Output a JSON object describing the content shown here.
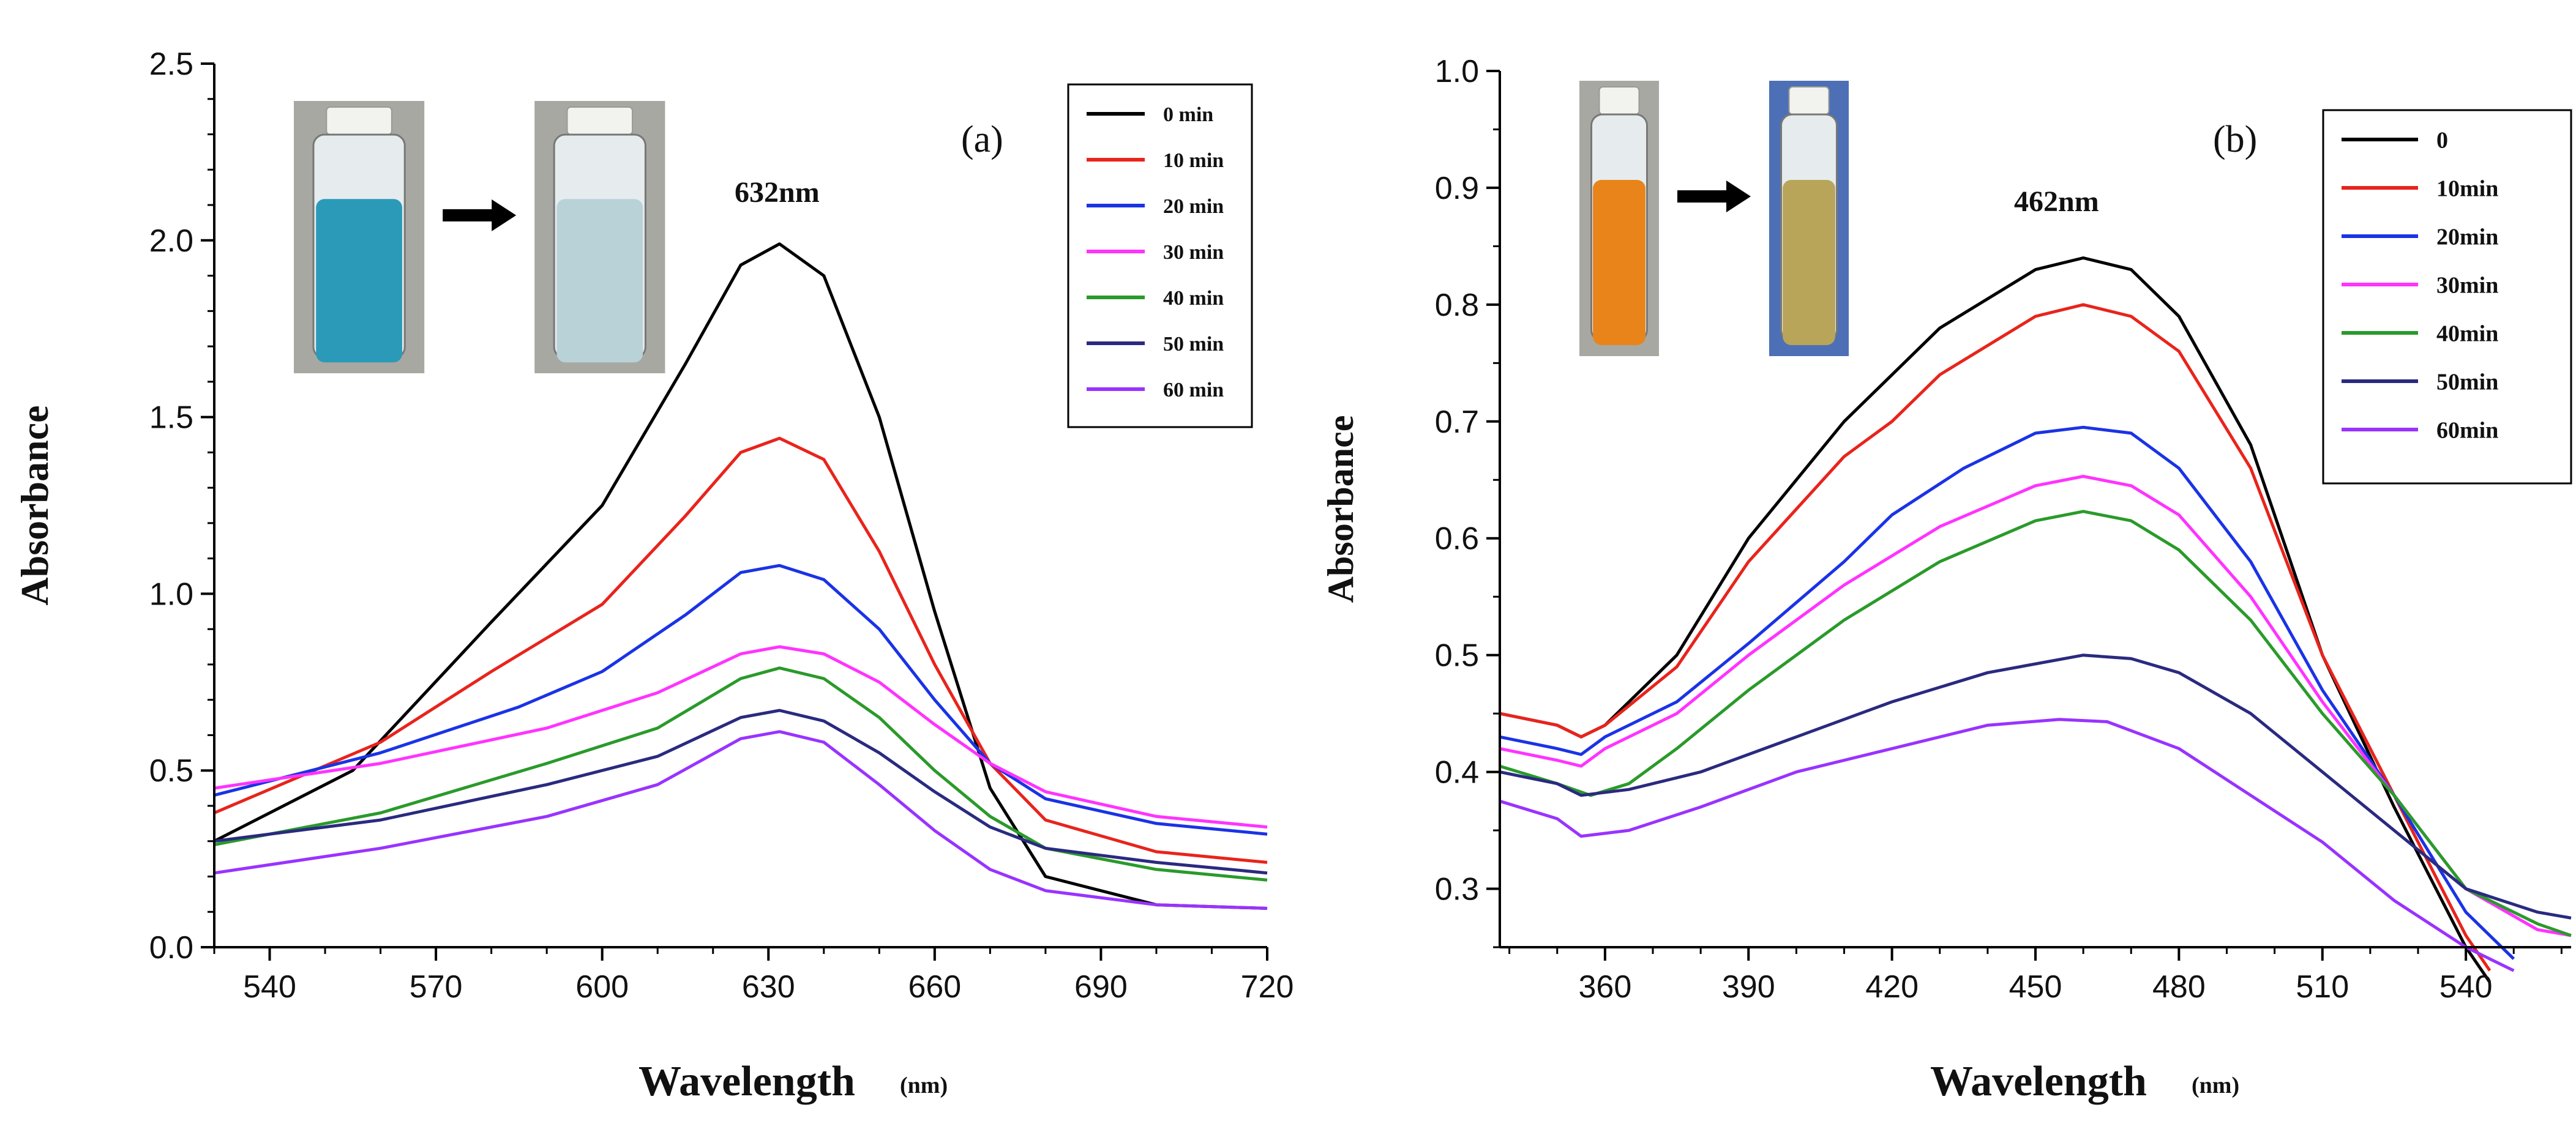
{
  "chart_data": [
    {
      "type": "line",
      "panel_label": "(a)",
      "peak_annotation": "632nm",
      "xlabel": "Wavelength",
      "xlabel_unit": "(nm)",
      "ylabel": "Absorbance",
      "xlim": [
        530,
        720
      ],
      "ylim": [
        0.0,
        2.5
      ],
      "xticks": [
        540,
        570,
        600,
        630,
        660,
        690,
        720
      ],
      "yticks": [
        "0.0",
        "0.5",
        "1.0",
        "1.5",
        "2.0",
        "2.5"
      ],
      "legend_position": "top-right",
      "inset": {
        "description": "vials",
        "before_color": "#2a9ab8",
        "after_color": "#b9d2d8"
      },
      "series": [
        {
          "name": "0 min",
          "color": "#000000",
          "points": [
            [
              530,
              0.3
            ],
            [
              555,
              0.5
            ],
            [
              580,
              0.92
            ],
            [
              600,
              1.25
            ],
            [
              615,
              1.65
            ],
            [
              625,
              1.93
            ],
            [
              632,
              1.99
            ],
            [
              640,
              1.9
            ],
            [
              650,
              1.5
            ],
            [
              660,
              0.95
            ],
            [
              670,
              0.45
            ],
            [
              680,
              0.2
            ],
            [
              700,
              0.12
            ],
            [
              720,
              0.11
            ]
          ]
        },
        {
          "name": "10 min",
          "color": "#e8241c",
          "points": [
            [
              530,
              0.38
            ],
            [
              560,
              0.58
            ],
            [
              580,
              0.78
            ],
            [
              600,
              0.97
            ],
            [
              615,
              1.22
            ],
            [
              625,
              1.4
            ],
            [
              632,
              1.44
            ],
            [
              640,
              1.38
            ],
            [
              650,
              1.12
            ],
            [
              660,
              0.8
            ],
            [
              670,
              0.52
            ],
            [
              680,
              0.36
            ],
            [
              700,
              0.27
            ],
            [
              720,
              0.24
            ]
          ]
        },
        {
          "name": "20 min",
          "color": "#1a33e6",
          "points": [
            [
              530,
              0.43
            ],
            [
              560,
              0.55
            ],
            [
              585,
              0.68
            ],
            [
              600,
              0.78
            ],
            [
              615,
              0.94
            ],
            [
              625,
              1.06
            ],
            [
              632,
              1.08
            ],
            [
              640,
              1.04
            ],
            [
              650,
              0.9
            ],
            [
              660,
              0.7
            ],
            [
              670,
              0.52
            ],
            [
              680,
              0.42
            ],
            [
              700,
              0.35
            ],
            [
              720,
              0.32
            ]
          ]
        },
        {
          "name": "30 min",
          "color": "#ff33ff",
          "points": [
            [
              530,
              0.45
            ],
            [
              560,
              0.52
            ],
            [
              590,
              0.62
            ],
            [
              610,
              0.72
            ],
            [
              625,
              0.83
            ],
            [
              632,
              0.85
            ],
            [
              640,
              0.83
            ],
            [
              650,
              0.75
            ],
            [
              660,
              0.63
            ],
            [
              670,
              0.52
            ],
            [
              680,
              0.44
            ],
            [
              700,
              0.37
            ],
            [
              720,
              0.34
            ]
          ]
        },
        {
          "name": "40 min",
          "color": "#2a9a2a",
          "points": [
            [
              530,
              0.29
            ],
            [
              560,
              0.38
            ],
            [
              590,
              0.52
            ],
            [
              610,
              0.62
            ],
            [
              625,
              0.76
            ],
            [
              632,
              0.79
            ],
            [
              640,
              0.76
            ],
            [
              650,
              0.65
            ],
            [
              660,
              0.5
            ],
            [
              670,
              0.37
            ],
            [
              680,
              0.28
            ],
            [
              700,
              0.22
            ],
            [
              720,
              0.19
            ]
          ]
        },
        {
          "name": "50 min",
          "color": "#2a2a80",
          "points": [
            [
              530,
              0.3
            ],
            [
              560,
              0.36
            ],
            [
              590,
              0.46
            ],
            [
              610,
              0.54
            ],
            [
              625,
              0.65
            ],
            [
              632,
              0.67
            ],
            [
              640,
              0.64
            ],
            [
              650,
              0.55
            ],
            [
              660,
              0.44
            ],
            [
              670,
              0.34
            ],
            [
              680,
              0.28
            ],
            [
              700,
              0.24
            ],
            [
              720,
              0.21
            ]
          ]
        },
        {
          "name": "60 min",
          "color": "#9933ff",
          "points": [
            [
              530,
              0.21
            ],
            [
              560,
              0.28
            ],
            [
              590,
              0.37
            ],
            [
              610,
              0.46
            ],
            [
              625,
              0.59
            ],
            [
              632,
              0.61
            ],
            [
              640,
              0.58
            ],
            [
              650,
              0.46
            ],
            [
              660,
              0.33
            ],
            [
              670,
              0.22
            ],
            [
              680,
              0.16
            ],
            [
              700,
              0.12
            ],
            [
              720,
              0.11
            ]
          ]
        }
      ]
    },
    {
      "type": "line",
      "panel_label": "(b)",
      "peak_annotation": "462nm",
      "xlabel": "Wavelength",
      "xlabel_unit": "(nm)",
      "ylabel": "Absorbance",
      "xlim": [
        338,
        562
      ],
      "ylim": [
        0.25,
        1.0
      ],
      "xticks": [
        360,
        390,
        420,
        450,
        480,
        510,
        540
      ],
      "yticks": [
        "0.3",
        "0.4",
        "0.5",
        "0.6",
        "0.7",
        "0.8",
        "0.9",
        "1.0"
      ],
      "legend_position": "top-right",
      "inset": {
        "description": "vials",
        "before_color": "#e8841a",
        "after_color": "#b8a55a"
      },
      "series": [
        {
          "name": "0",
          "color": "#000000",
          "points": [
            [
              338,
              0.45
            ],
            [
              350,
              0.44
            ],
            [
              355,
              0.43
            ],
            [
              360,
              0.44
            ],
            [
              375,
              0.5
            ],
            [
              390,
              0.6
            ],
            [
              410,
              0.7
            ],
            [
              430,
              0.78
            ],
            [
              450,
              0.83
            ],
            [
              460,
              0.84
            ],
            [
              470,
              0.83
            ],
            [
              480,
              0.79
            ],
            [
              495,
              0.68
            ],
            [
              510,
              0.5
            ],
            [
              525,
              0.37
            ],
            [
              540,
              0.25
            ],
            [
              545,
              0.22
            ]
          ]
        },
        {
          "name": "10min",
          "color": "#e8241c",
          "points": [
            [
              338,
              0.45
            ],
            [
              350,
              0.44
            ],
            [
              355,
              0.43
            ],
            [
              360,
              0.44
            ],
            [
              375,
              0.49
            ],
            [
              390,
              0.58
            ],
            [
              410,
              0.67
            ],
            [
              420,
              0.7
            ],
            [
              430,
              0.74
            ],
            [
              450,
              0.79
            ],
            [
              460,
              0.8
            ],
            [
              470,
              0.79
            ],
            [
              480,
              0.76
            ],
            [
              495,
              0.66
            ],
            [
              510,
              0.5
            ],
            [
              525,
              0.38
            ],
            [
              540,
              0.26
            ],
            [
              545,
              0.23
            ]
          ]
        },
        {
          "name": "20min",
          "color": "#1a33e6",
          "points": [
            [
              338,
              0.43
            ],
            [
              350,
              0.42
            ],
            [
              355,
              0.415
            ],
            [
              360,
              0.43
            ],
            [
              375,
              0.46
            ],
            [
              390,
              0.51
            ],
            [
              410,
              0.58
            ],
            [
              420,
              0.62
            ],
            [
              435,
              0.66
            ],
            [
              450,
              0.69
            ],
            [
              460,
              0.695
            ],
            [
              470,
              0.69
            ],
            [
              480,
              0.66
            ],
            [
              495,
              0.58
            ],
            [
              510,
              0.47
            ],
            [
              525,
              0.38
            ],
            [
              540,
              0.28
            ],
            [
              550,
              0.24
            ]
          ]
        },
        {
          "name": "30min",
          "color": "#ff33ff",
          "points": [
            [
              338,
              0.42
            ],
            [
              350,
              0.41
            ],
            [
              355,
              0.405
            ],
            [
              360,
              0.42
            ],
            [
              375,
              0.45
            ],
            [
              390,
              0.5
            ],
            [
              410,
              0.56
            ],
            [
              430,
              0.61
            ],
            [
              450,
              0.645
            ],
            [
              460,
              0.653
            ],
            [
              470,
              0.645
            ],
            [
              480,
              0.62
            ],
            [
              495,
              0.55
            ],
            [
              510,
              0.46
            ],
            [
              525,
              0.38
            ],
            [
              540,
              0.3
            ],
            [
              555,
              0.265
            ],
            [
              562,
              0.26
            ]
          ]
        },
        {
          "name": "40min",
          "color": "#2a9a2a",
          "points": [
            [
              338,
              0.405
            ],
            [
              350,
              0.39
            ],
            [
              357,
              0.38
            ],
            [
              365,
              0.39
            ],
            [
              375,
              0.42
            ],
            [
              390,
              0.47
            ],
            [
              410,
              0.53
            ],
            [
              430,
              0.58
            ],
            [
              450,
              0.615
            ],
            [
              460,
              0.623
            ],
            [
              470,
              0.615
            ],
            [
              480,
              0.59
            ],
            [
              495,
              0.53
            ],
            [
              510,
              0.45
            ],
            [
              525,
              0.38
            ],
            [
              540,
              0.3
            ],
            [
              555,
              0.27
            ],
            [
              562,
              0.26
            ]
          ]
        },
        {
          "name": "50min",
          "color": "#2a2a80",
          "points": [
            [
              338,
              0.4
            ],
            [
              350,
              0.39
            ],
            [
              355,
              0.38
            ],
            [
              365,
              0.385
            ],
            [
              380,
              0.4
            ],
            [
              400,
              0.43
            ],
            [
              420,
              0.46
            ],
            [
              440,
              0.485
            ],
            [
              460,
              0.5
            ],
            [
              470,
              0.497
            ],
            [
              480,
              0.485
            ],
            [
              495,
              0.45
            ],
            [
              510,
              0.4
            ],
            [
              525,
              0.35
            ],
            [
              540,
              0.3
            ],
            [
              555,
              0.28
            ],
            [
              562,
              0.275
            ]
          ]
        },
        {
          "name": "60min",
          "color": "#9933ff",
          "points": [
            [
              338,
              0.375
            ],
            [
              350,
              0.36
            ],
            [
              355,
              0.345
            ],
            [
              365,
              0.35
            ],
            [
              380,
              0.37
            ],
            [
              400,
              0.4
            ],
            [
              420,
              0.42
            ],
            [
              440,
              0.44
            ],
            [
              455,
              0.445
            ],
            [
              465,
              0.443
            ],
            [
              480,
              0.42
            ],
            [
              495,
              0.38
            ],
            [
              510,
              0.34
            ],
            [
              525,
              0.29
            ],
            [
              540,
              0.25
            ],
            [
              550,
              0.23
            ]
          ]
        }
      ]
    }
  ]
}
